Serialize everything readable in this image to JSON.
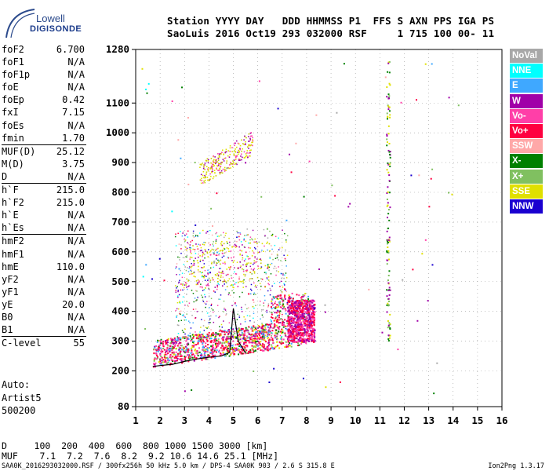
{
  "logo": {
    "line1": "Lowell",
    "line2": "DIGISONDE"
  },
  "header": {
    "line1": "Station YYYY DAY   DDD HHMMSS P1  FFS S AXN PPS IGA PS",
    "line2": "SaoLuis 2016 Oct19 293 032000 RSF     1 715 100 00- 11"
  },
  "params": [
    {
      "name": "foF2",
      "value": "6.700"
    },
    {
      "name": "foF1",
      "value": "N/A"
    },
    {
      "name": "foF1p",
      "value": "N/A"
    },
    {
      "name": "foE",
      "value": "N/A"
    },
    {
      "name": "foEp",
      "value": "0.42"
    },
    {
      "name": "fxI",
      "value": "7.15"
    },
    {
      "name": "foEs",
      "value": "N/A"
    },
    {
      "name": "fmin",
      "value": "1.70"
    },
    {
      "name": "MUF(D)",
      "value": "25.12",
      "sep": true
    },
    {
      "name": "M(D)",
      "value": "3.75"
    },
    {
      "name": "D",
      "value": "N/A"
    },
    {
      "name": "h`F",
      "value": "215.0",
      "sep": true
    },
    {
      "name": "h`F2",
      "value": "215.0"
    },
    {
      "name": "h`E",
      "value": "N/A"
    },
    {
      "name": "h`Es",
      "value": "N/A"
    },
    {
      "name": "hmF2",
      "value": "N/A",
      "sep": true
    },
    {
      "name": "hmF1",
      "value": "N/A"
    },
    {
      "name": "hmE",
      "value": "110.0"
    },
    {
      "name": "yF2",
      "value": "N/A"
    },
    {
      "name": "yF1",
      "value": "N/A"
    },
    {
      "name": "yE",
      "value": "20.0"
    },
    {
      "name": "B0",
      "value": "N/A"
    },
    {
      "name": "B1",
      "value": "N/A"
    },
    {
      "name": "C-level",
      "value": "55",
      "sep": true
    }
  ],
  "aux": {
    "line1": "Auto:",
    "line2": "Artist5",
    "line3": "500200"
  },
  "bottom": {
    "row1": "D     100  200  400  600  800 1000 1500 3000 [km]",
    "row2": "MUF    7.1  7.2  7.6  8.2  9.2 10.6 14.6 25.1 [MHz]",
    "footer": "SAA0K_2016293032000.RSF / 300fx256h 50 kHz 5.0 km / DPS-4 SAA0K 903 / 2.6 S 315.8 E",
    "version": "Ion2Png 1.3.17"
  },
  "legend": [
    {
      "label": "NoVal",
      "color": "#a8a8a8"
    },
    {
      "label": "NNE",
      "color": "#00ffff"
    },
    {
      "label": "E",
      "color": "#3fa8ff"
    },
    {
      "label": "W",
      "color": "#a000a8"
    },
    {
      "label": "Vo-",
      "color": "#ff3fa8"
    },
    {
      "label": "Vo+",
      "color": "#ff0040"
    },
    {
      "label": "SSW",
      "color": "#ffa8a8"
    },
    {
      "label": "X-",
      "color": "#008000"
    },
    {
      "label": "X+",
      "color": "#80c060"
    },
    {
      "label": "SSE",
      "color": "#e0e000"
    },
    {
      "label": "NNW",
      "color": "#1a00d0"
    }
  ],
  "chart_data": {
    "type": "scatter",
    "xlim": [
      1,
      16
    ],
    "ylim": [
      80,
      1280
    ],
    "xticks": [
      1,
      2,
      3,
      4,
      5,
      6,
      7,
      8,
      9,
      10,
      11,
      12,
      13,
      14,
      15,
      16
    ],
    "yticks": [
      80,
      200,
      300,
      400,
      500,
      600,
      700,
      800,
      900,
      1000,
      1100,
      1280
    ],
    "grid": true,
    "trace": {
      "color": "#000000",
      "x": [
        1.7,
        2.0,
        2.5,
        3.0,
        3.5,
        4.0,
        4.5,
        4.85,
        5.0,
        5.2,
        5.5
      ],
      "y": [
        215,
        218,
        222,
        232,
        240,
        246,
        250,
        262,
        410,
        300,
        260
      ]
    }
  }
}
